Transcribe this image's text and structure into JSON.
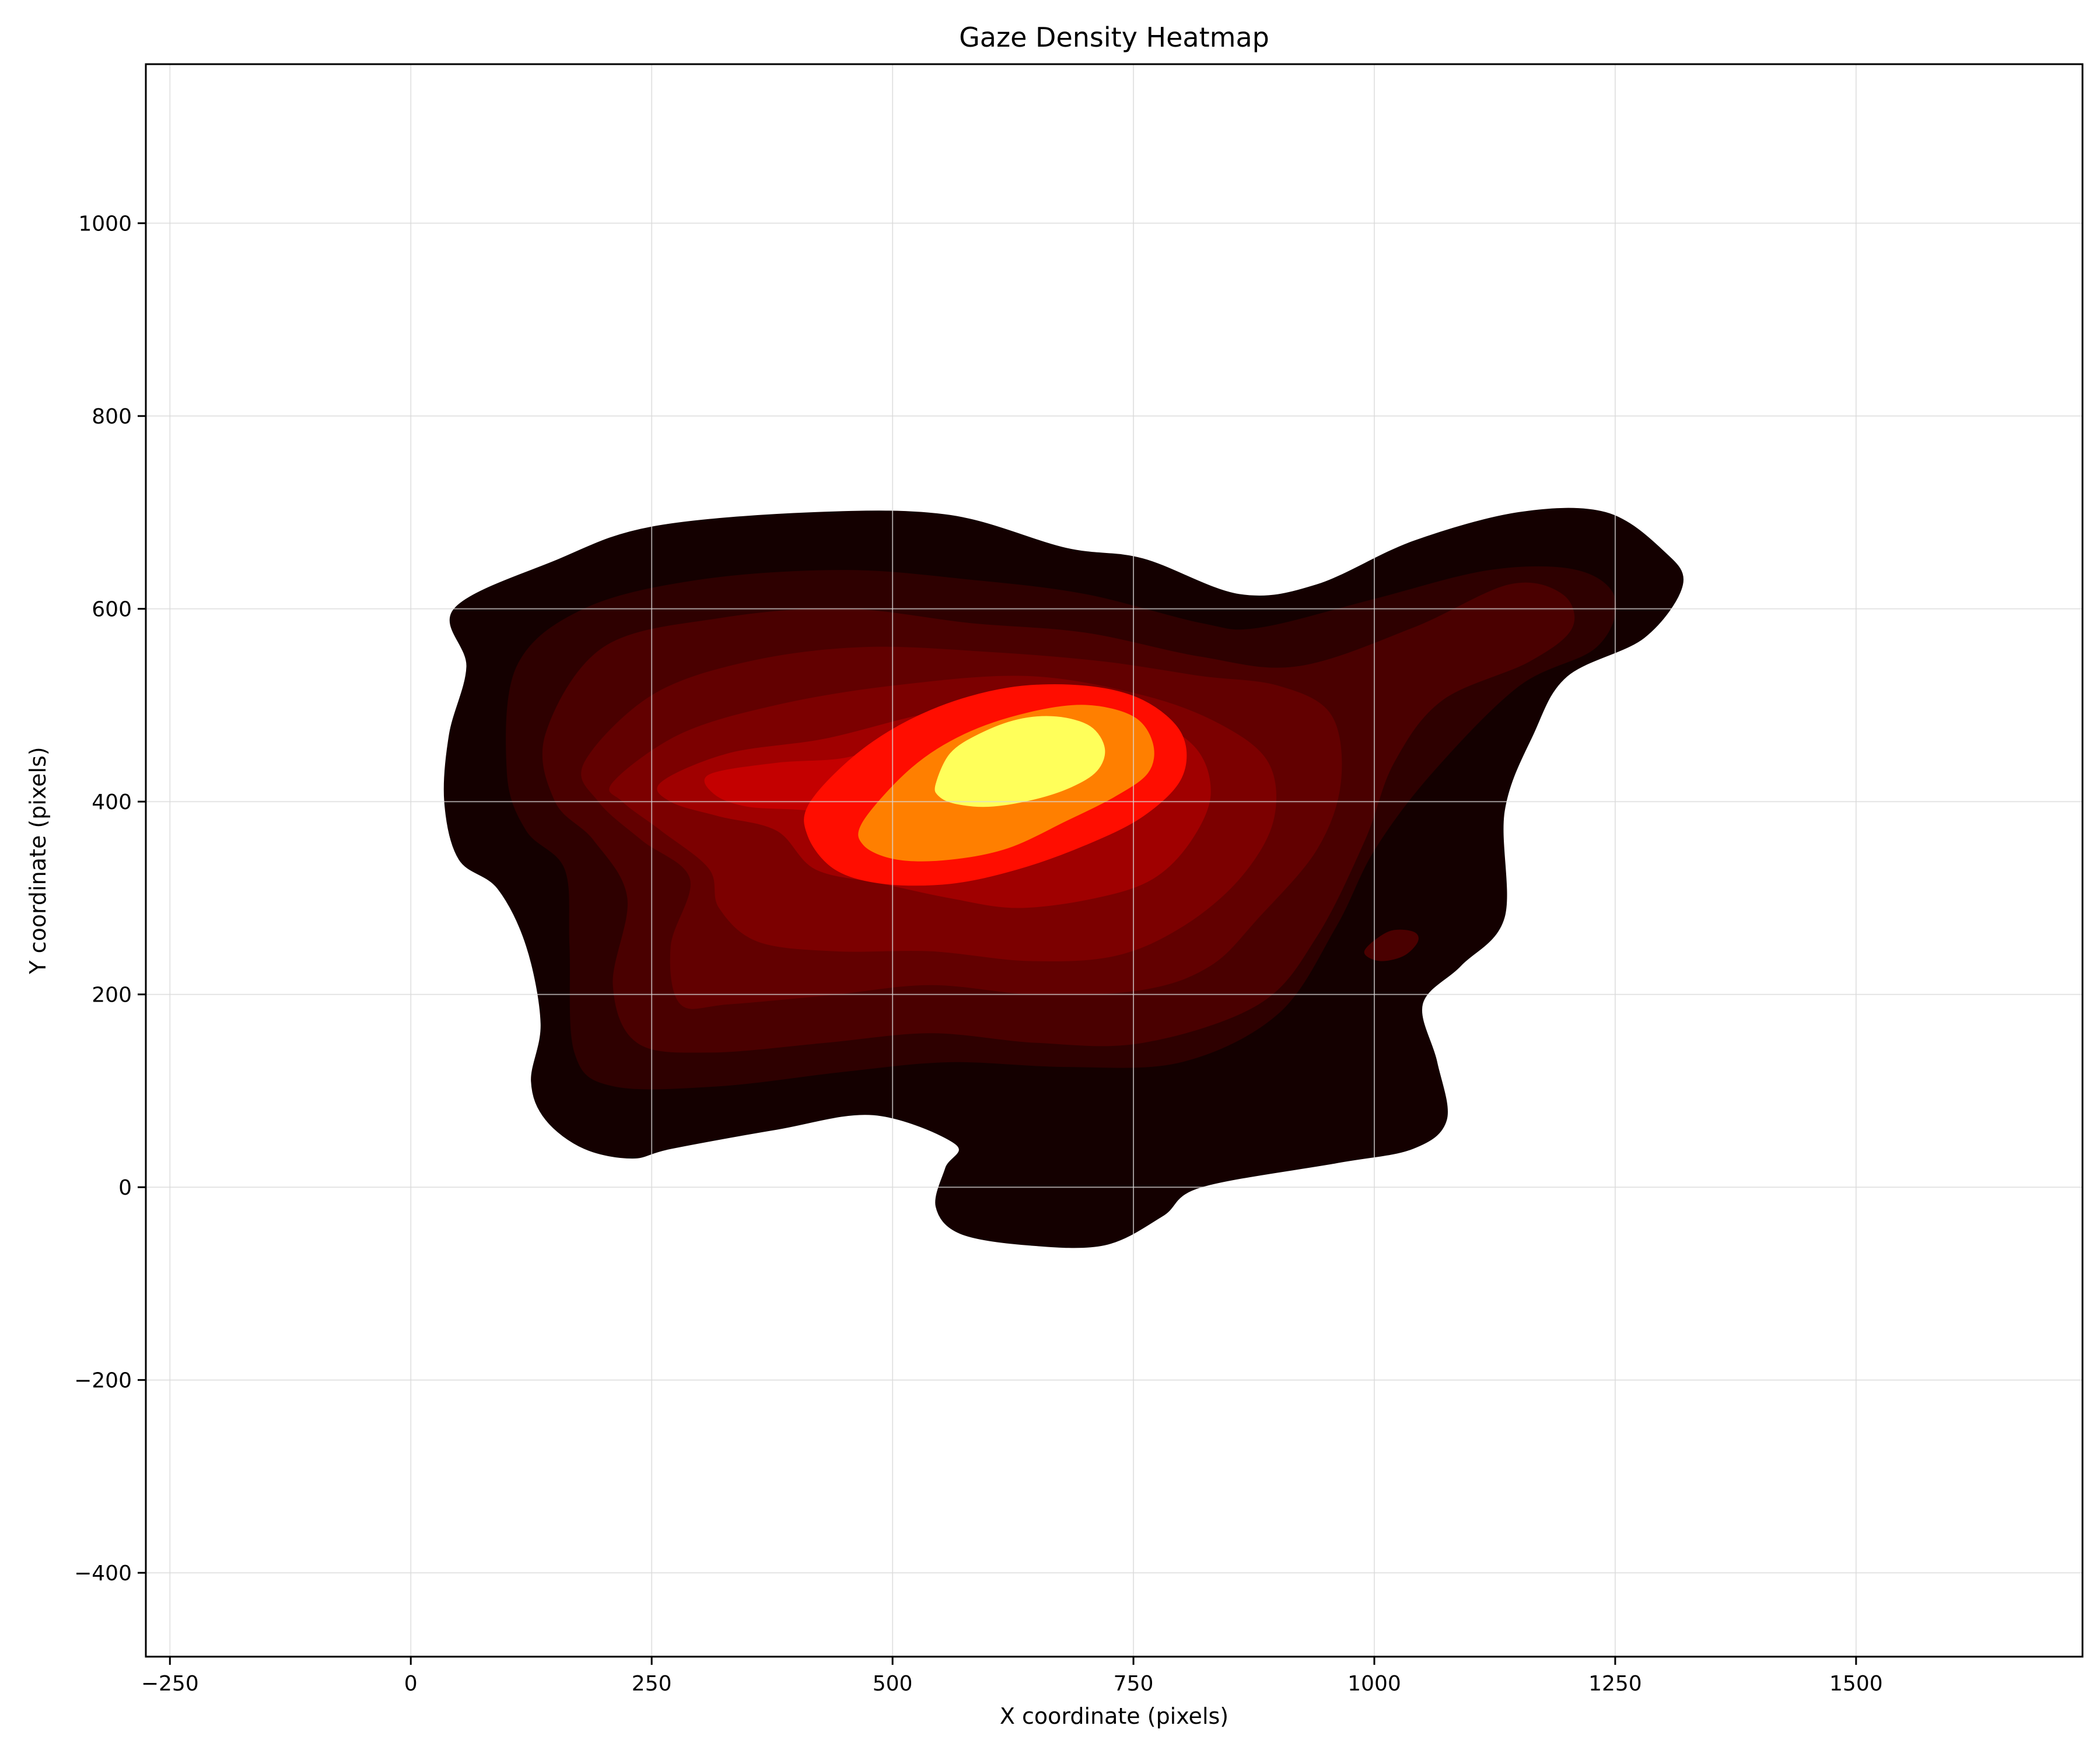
{
  "chart_data": {
    "type": "heatmap",
    "subtype": "filled-density-contour",
    "title": "Gaze Density Heatmap",
    "xlabel": "X coordinate (pixels)",
    "ylabel": "Y coordinate (pixels)",
    "xlim": [
      -275,
      1735
    ],
    "ylim": [
      -487,
      1165
    ],
    "xticks": [
      -250,
      0,
      250,
      500,
      750,
      1000,
      1250,
      1500
    ],
    "xtick_labels": [
      "−250",
      "0",
      "250",
      "500",
      "750",
      "1000",
      "1250",
      "1500"
    ],
    "yticks": [
      -400,
      -200,
      0,
      200,
      400,
      600,
      800,
      1000
    ],
    "ytick_labels": [
      "−400",
      "−200",
      "0",
      "200",
      "400",
      "600",
      "800",
      "1000"
    ],
    "grid": true,
    "colormap": "hot",
    "colors": {
      "background": "#ffffff",
      "grid": "#d9d9d9",
      "axis": "#000000"
    },
    "levels": [
      {
        "level": 1,
        "color": "#140000",
        "polygons": [
          [
            [
              45,
              600
            ],
            [
              150,
              650
            ],
            [
              250,
              685
            ],
            [
              420,
              700
            ],
            [
              560,
              697
            ],
            [
              680,
              663
            ],
            [
              760,
              652
            ],
            [
              860,
              615
            ],
            [
              940,
              625
            ],
            [
              1040,
              670
            ],
            [
              1150,
              700
            ],
            [
              1240,
              700
            ],
            [
              1300,
              660
            ],
            [
              1320,
              625
            ],
            [
              1280,
              570
            ],
            [
              1200,
              530
            ],
            [
              1165,
              470
            ],
            [
              1135,
              390
            ],
            [
              1135,
              280
            ],
            [
              1090,
              230
            ],
            [
              1050,
              190
            ],
            [
              1065,
              130
            ],
            [
              1075,
              70
            ],
            [
              1040,
              40
            ],
            [
              960,
              25
            ],
            [
              820,
              0
            ],
            [
              780,
              -30
            ],
            [
              720,
              -60
            ],
            [
              640,
              -60
            ],
            [
              570,
              -48
            ],
            [
              545,
              -20
            ],
            [
              555,
              20
            ],
            [
              565,
              45
            ],
            [
              480,
              75
            ],
            [
              380,
              60
            ],
            [
              270,
              40
            ],
            [
              230,
              30
            ],
            [
              180,
              40
            ],
            [
              140,
              70
            ],
            [
              125,
              110
            ],
            [
              135,
              170
            ],
            [
              120,
              250
            ],
            [
              90,
              310
            ],
            [
              50,
              340
            ],
            [
              35,
              400
            ],
            [
              40,
              470
            ],
            [
              58,
              540
            ]
          ]
        ]
      },
      {
        "level": 2,
        "color": "#2e0000",
        "polygons": [
          [
            [
              110,
              540
            ],
            [
              180,
              600
            ],
            [
              300,
              630
            ],
            [
              450,
              640
            ],
            [
              580,
              630
            ],
            [
              700,
              615
            ],
            [
              820,
              585
            ],
            [
              880,
              580
            ],
            [
              1000,
              610
            ],
            [
              1120,
              640
            ],
            [
              1210,
              640
            ],
            [
              1250,
              610
            ],
            [
              1230,
              560
            ],
            [
              1150,
              520
            ],
            [
              1060,
              430
            ],
            [
              1000,
              350
            ],
            [
              960,
              270
            ],
            [
              900,
              180
            ],
            [
              800,
              130
            ],
            [
              680,
              125
            ],
            [
              560,
              130
            ],
            [
              450,
              120
            ],
            [
              320,
              105
            ],
            [
              210,
              105
            ],
            [
              170,
              140
            ],
            [
              165,
              250
            ],
            [
              160,
              330
            ],
            [
              120,
              370
            ],
            [
              100,
              430
            ]
          ]
        ]
      },
      {
        "level": 3,
        "color": "#4a0000",
        "polygons": [
          [
            [
              140,
              470
            ],
            [
              200,
              560
            ],
            [
              320,
              590
            ],
            [
              450,
              600
            ],
            [
              580,
              585
            ],
            [
              700,
              575
            ],
            [
              820,
              550
            ],
            [
              920,
              540
            ],
            [
              1040,
              580
            ],
            [
              1140,
              625
            ],
            [
              1195,
              615
            ],
            [
              1205,
              580
            ],
            [
              1160,
              545
            ],
            [
              1070,
              505
            ],
            [
              1020,
              440
            ],
            [
              990,
              360
            ],
            [
              940,
              260
            ],
            [
              880,
              190
            ],
            [
              760,
              150
            ],
            [
              650,
              150
            ],
            [
              540,
              160
            ],
            [
              430,
              150
            ],
            [
              310,
              140
            ],
            [
              235,
              150
            ],
            [
              210,
              210
            ],
            [
              225,
              300
            ],
            [
              190,
              360
            ],
            [
              150,
              400
            ]
          ],
          [
            [
              990,
              245
            ],
            [
              1005,
              235
            ],
            [
              1030,
              240
            ],
            [
              1045,
              255
            ],
            [
              1040,
              265
            ],
            [
              1015,
              265
            ]
          ]
        ]
      },
      {
        "level": 4,
        "color": "#620000",
        "polygons": [
          [
            [
              180,
              440
            ],
            [
              250,
              510
            ],
            [
              350,
              545
            ],
            [
              470,
              560
            ],
            [
              600,
              555
            ],
            [
              720,
              545
            ],
            [
              820,
              530
            ],
            [
              900,
              520
            ],
            [
              955,
              490
            ],
            [
              965,
              420
            ],
            [
              940,
              350
            ],
            [
              880,
              280
            ],
            [
              830,
              230
            ],
            [
              760,
              205
            ],
            [
              650,
              200
            ],
            [
              540,
              210
            ],
            [
              440,
              200
            ],
            [
              330,
              190
            ],
            [
              280,
              190
            ],
            [
              270,
              250
            ],
            [
              290,
              320
            ],
            [
              240,
              360
            ],
            [
              195,
              400
            ]
          ]
        ]
      },
      {
        "level": 5,
        "color": "#7c0000",
        "polygons": [
          [
            [
              210,
              420
            ],
            [
              280,
              470
            ],
            [
              380,
              500
            ],
            [
              500,
              520
            ],
            [
              640,
              530
            ],
            [
              760,
              510
            ],
            [
              840,
              480
            ],
            [
              890,
              440
            ],
            [
              895,
              380
            ],
            [
              860,
              320
            ],
            [
              800,
              270
            ],
            [
              730,
              240
            ],
            [
              640,
              235
            ],
            [
              540,
              245
            ],
            [
              440,
              245
            ],
            [
              360,
              255
            ],
            [
              320,
              290
            ],
            [
              310,
              330
            ],
            [
              260,
              370
            ],
            [
              220,
              400
            ]
          ]
        ]
      },
      {
        "level": 6,
        "color": "#a00000",
        "polygons": [
          [
            [
              260,
              420
            ],
            [
              330,
              450
            ],
            [
              430,
              465
            ],
            [
              530,
              490
            ],
            [
              640,
              510
            ],
            [
              740,
              495
            ],
            [
              810,
              460
            ],
            [
              830,
              410
            ],
            [
              810,
              360
            ],
            [
              770,
              320
            ],
            [
              710,
              300
            ],
            [
              630,
              290
            ],
            [
              560,
              300
            ],
            [
              490,
              315
            ],
            [
              420,
              330
            ],
            [
              380,
              370
            ],
            [
              320,
              385
            ],
            [
              270,
              400
            ]
          ]
        ]
      },
      {
        "level": 7,
        "color": "#c40000",
        "polygons": [
          [
            [
              310,
              428
            ],
            [
              380,
              440
            ],
            [
              450,
              445
            ],
            [
              500,
              462
            ],
            [
              560,
              480
            ],
            [
              640,
              486
            ],
            [
              700,
              470
            ],
            [
              730,
              440
            ],
            [
              725,
              400
            ],
            [
              690,
              365
            ],
            [
              640,
              345
            ],
            [
              580,
              340
            ],
            [
              530,
              350
            ],
            [
              490,
              372
            ],
            [
              420,
              390
            ],
            [
              350,
              395
            ],
            [
              315,
              408
            ]
          ]
        ]
      },
      {
        "level": 8,
        "color": "#ff0d00",
        "polygons": [
          [
            [
              415,
              400
            ],
            [
              470,
              455
            ],
            [
              540,
              495
            ],
            [
              620,
              518
            ],
            [
              700,
              520
            ],
            [
              760,
              505
            ],
            [
              800,
              470
            ],
            [
              800,
              425
            ],
            [
              760,
              385
            ],
            [
              700,
              355
            ],
            [
              630,
              330
            ],
            [
              560,
              315
            ],
            [
              490,
              315
            ],
            [
              440,
              330
            ],
            [
              412,
              365
            ]
          ]
        ]
      },
      {
        "level": 9,
        "color": "#ff7f00",
        "polygons": [
          [
            [
              470,
              380
            ],
            [
              520,
              435
            ],
            [
              575,
              470
            ],
            [
              640,
              492
            ],
            [
              700,
              500
            ],
            [
              750,
              488
            ],
            [
              770,
              460
            ],
            [
              765,
              430
            ],
            [
              730,
              405
            ],
            [
              680,
              380
            ],
            [
              620,
              352
            ],
            [
              560,
              340
            ],
            [
              505,
              340
            ],
            [
              470,
              355
            ]
          ]
        ]
      },
      {
        "level": 10,
        "color": "#ffff5a",
        "polygons": [
          [
            [
              545,
              418
            ],
            [
              560,
              450
            ],
            [
              590,
              470
            ],
            [
              630,
              485
            ],
            [
              670,
              488
            ],
            [
              705,
              478
            ],
            [
              720,
              455
            ],
            [
              712,
              432
            ],
            [
              685,
              415
            ],
            [
              645,
              402
            ],
            [
              600,
              395
            ],
            [
              565,
              398
            ],
            [
              548,
              406
            ]
          ]
        ]
      }
    ]
  }
}
